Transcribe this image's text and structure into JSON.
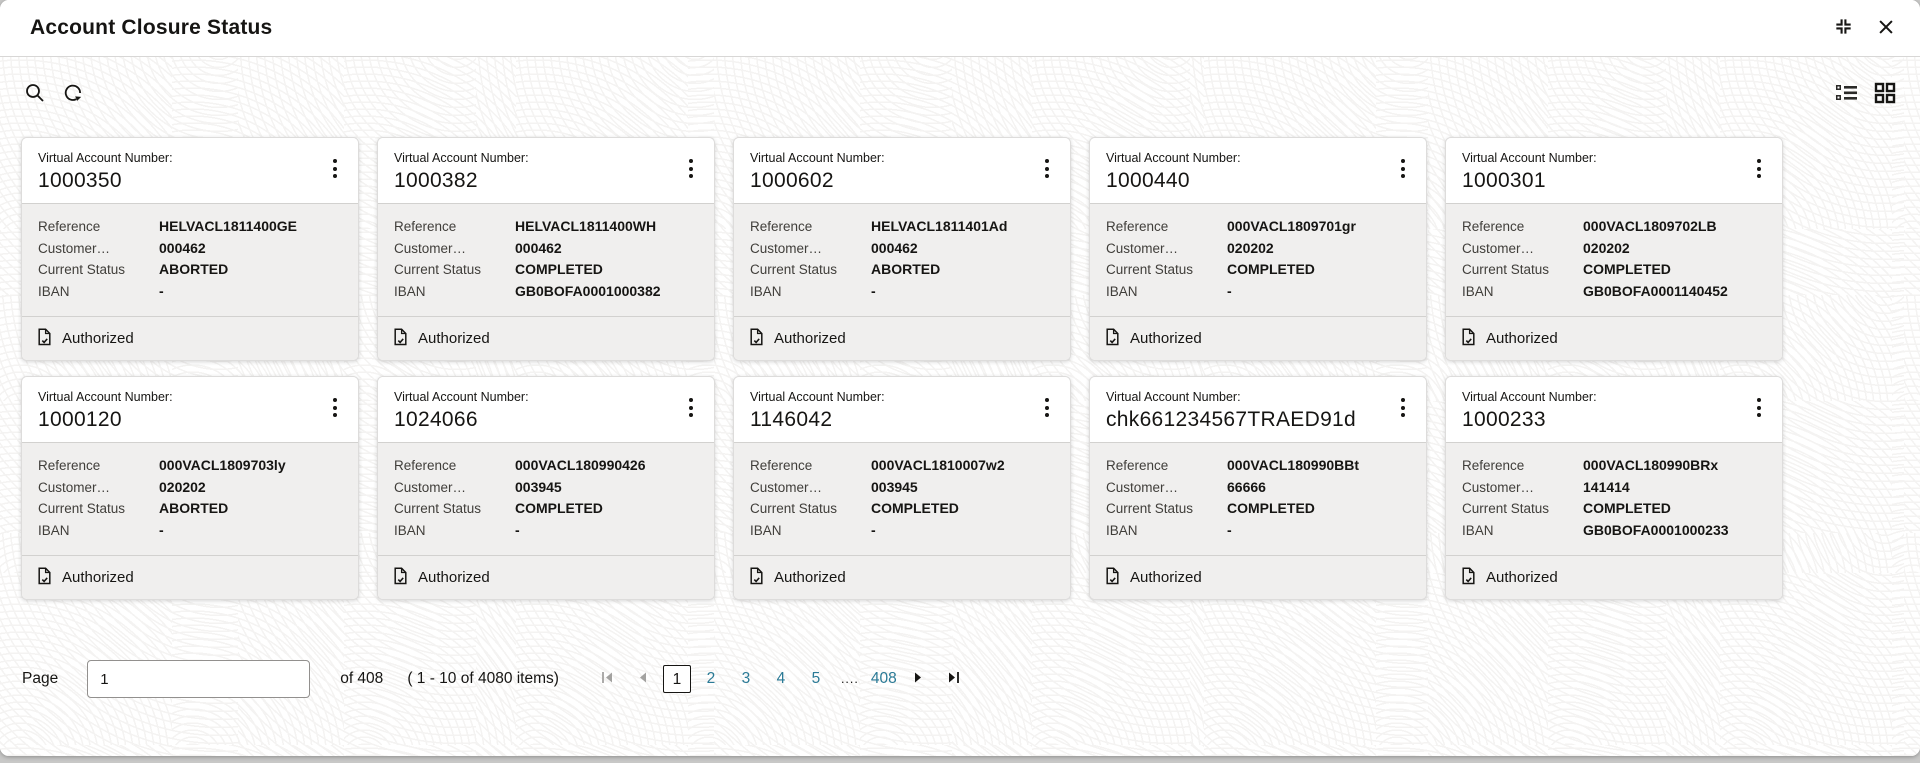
{
  "window": {
    "title": "Account Closure Status"
  },
  "toolbar": {
    "left_icons": [
      "search",
      "refresh"
    ],
    "right_icons": [
      "list-view",
      "grid-view"
    ]
  },
  "card_labels": {
    "virtual_account_number": "Virtual Account Number:",
    "reference": "Reference",
    "customer": "Customer…",
    "current_status": "Current Status",
    "iban": "IBAN"
  },
  "cards": [
    {
      "virtual_account_number": "1000350",
      "reference": "HELVACL1811400GE",
      "customer": "000462",
      "current_status": "ABORTED",
      "iban": "-",
      "authorization": "Authorized"
    },
    {
      "virtual_account_number": "1000382",
      "reference": "HELVACL1811400WH",
      "customer": "000462",
      "current_status": "COMPLETED",
      "iban": "GB0BOFA0001000382",
      "authorization": "Authorized"
    },
    {
      "virtual_account_number": "1000602",
      "reference": "HELVACL1811401Ad",
      "customer": "000462",
      "current_status": "ABORTED",
      "iban": "-",
      "authorization": "Authorized"
    },
    {
      "virtual_account_number": "1000440",
      "reference": "000VACL1809701gr",
      "customer": "020202",
      "current_status": "COMPLETED",
      "iban": "-",
      "authorization": "Authorized"
    },
    {
      "virtual_account_number": "1000301",
      "reference": "000VACL1809702LB",
      "customer": "020202",
      "current_status": "COMPLETED",
      "iban": "GB0BOFA0001140452",
      "authorization": "Authorized"
    },
    {
      "virtual_account_number": "1000120",
      "reference": "000VACL1809703ly",
      "customer": "020202",
      "current_status": "ABORTED",
      "iban": "-",
      "authorization": "Authorized"
    },
    {
      "virtual_account_number": "1024066",
      "reference": "000VACL180990426",
      "customer": "003945",
      "current_status": "COMPLETED",
      "iban": "-",
      "authorization": "Authorized"
    },
    {
      "virtual_account_number": "1146042",
      "reference": "000VACL1810007w2",
      "customer": "003945",
      "current_status": "COMPLETED",
      "iban": "-",
      "authorization": "Authorized"
    },
    {
      "virtual_account_number": "chk661234567TRAED91d",
      "reference": "000VACL180990BBt",
      "customer": "66666",
      "current_status": "COMPLETED",
      "iban": "-",
      "authorization": "Authorized"
    },
    {
      "virtual_account_number": "1000233",
      "reference": "000VACL180990BRx",
      "customer": "141414",
      "current_status": "COMPLETED",
      "iban": "GB0BOFA0001000233",
      "authorization": "Authorized"
    }
  ],
  "pagination": {
    "page_label": "Page",
    "page_value": "1",
    "of_label": "of 408",
    "items_label": "( 1 - 10 of 4080 items)",
    "current_page": "1",
    "pages": [
      "1",
      "2",
      "3",
      "4",
      "5"
    ],
    "ellipsis": "....",
    "last_page": "408"
  },
  "colors": {
    "accent_link": "#2a7a96",
    "text_primary": "#161513",
    "card_section_bg": "#f0efee"
  }
}
